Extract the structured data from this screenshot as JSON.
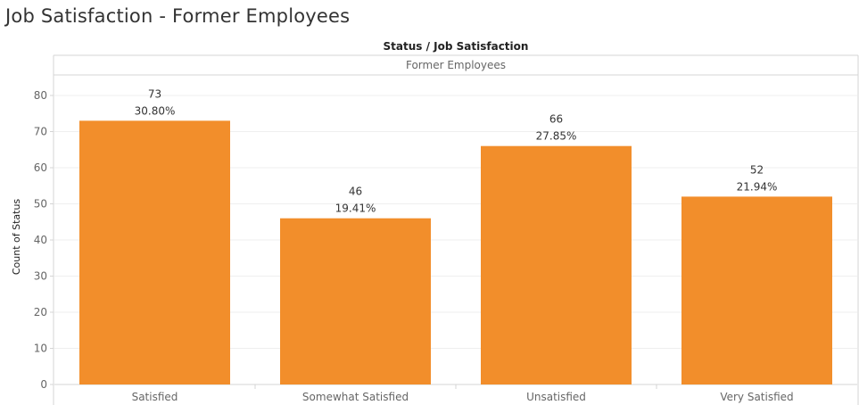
{
  "page": {
    "title": "Job Satisfaction - Former Employees",
    "column_header": "Status / Job Satisfaction",
    "pane_header": "Former Employees"
  },
  "chart_data": {
    "type": "bar",
    "categories": [
      "Satisfied",
      "Somewhat Satisfied",
      "Unsatisfied",
      "Very Satisfied"
    ],
    "values": [
      73,
      46,
      66,
      52
    ],
    "percent_labels": [
      "30.80%",
      "19.41%",
      "27.85%",
      "21.94%"
    ],
    "title": "Job Satisfaction - Former Employees",
    "xlabel": "",
    "ylabel": "Count of Status",
    "ylim": [
      0,
      85
    ],
    "yticks": [
      0,
      10,
      20,
      30,
      40,
      50,
      60,
      70,
      80
    ],
    "bar_color": "#F28E2B",
    "grid": true,
    "legend": "none"
  }
}
